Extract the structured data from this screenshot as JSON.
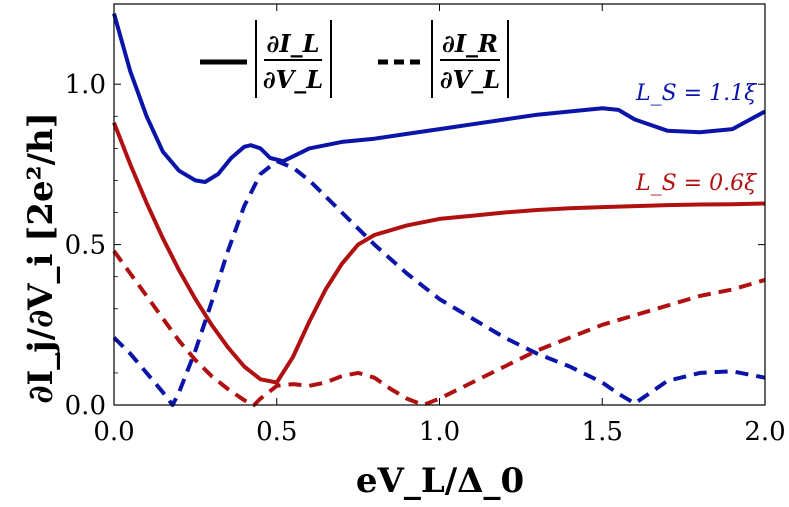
{
  "chart_data": {
    "type": "line",
    "xlabel": "eV_L/Δ_0",
    "ylabel": "∂I_j/∂V_i [2e²/h]",
    "xlim": [
      0,
      2
    ],
    "ylim": [
      0,
      1.25
    ],
    "xticks": [
      "0.0",
      "0.5",
      "1.0",
      "1.5",
      "2.0"
    ],
    "yticks": [
      "0.0",
      "0.5",
      "1.0"
    ],
    "legend": {
      "placement": "top-left",
      "solid": {
        "num": "∂I_L",
        "den": "∂V_L"
      },
      "dashed": {
        "num": "∂I_R",
        "den": "∂V_L"
      }
    },
    "series": [
      {
        "name": "L_S = 1.1ξ",
        "label": "L_S = 1.1ξ",
        "style": "solid",
        "color": "#0a14a8",
        "x": [
          0,
          0.05,
          0.1,
          0.15,
          0.2,
          0.25,
          0.28,
          0.32,
          0.36,
          0.4,
          0.42,
          0.45,
          0.48,
          0.52,
          0.6,
          0.7,
          0.8,
          0.9,
          1.0,
          1.1,
          1.2,
          1.3,
          1.4,
          1.5,
          1.55,
          1.6,
          1.7,
          1.8,
          1.9,
          2.0
        ],
        "y": [
          1.22,
          1.04,
          0.9,
          0.79,
          0.73,
          0.7,
          0.695,
          0.72,
          0.77,
          0.805,
          0.81,
          0.8,
          0.77,
          0.76,
          0.8,
          0.82,
          0.83,
          0.845,
          0.86,
          0.875,
          0.89,
          0.905,
          0.915,
          0.925,
          0.92,
          0.89,
          0.855,
          0.85,
          0.86,
          0.915
        ]
      },
      {
        "name": "L_S = 0.6ξ",
        "label": "L_S = 0.6ξ",
        "style": "solid",
        "color": "#b01010",
        "x": [
          0,
          0.05,
          0.1,
          0.15,
          0.2,
          0.25,
          0.3,
          0.35,
          0.4,
          0.45,
          0.5,
          0.55,
          0.6,
          0.65,
          0.7,
          0.75,
          0.8,
          0.9,
          1.0,
          1.1,
          1.2,
          1.3,
          1.4,
          1.5,
          1.6,
          1.7,
          1.8,
          1.9,
          2.0
        ],
        "y": [
          0.88,
          0.75,
          0.63,
          0.52,
          0.42,
          0.33,
          0.25,
          0.18,
          0.12,
          0.08,
          0.07,
          0.15,
          0.26,
          0.36,
          0.44,
          0.5,
          0.53,
          0.56,
          0.58,
          0.59,
          0.6,
          0.608,
          0.613,
          0.617,
          0.62,
          0.623,
          0.625,
          0.626,
          0.628
        ]
      },
      {
        "name": "dashed L_S = 1.1ξ",
        "style": "dashed",
        "color": "#0a14a8",
        "x": [
          0,
          0.05,
          0.1,
          0.15,
          0.18,
          0.2,
          0.25,
          0.3,
          0.35,
          0.4,
          0.45,
          0.5,
          0.55,
          0.6,
          0.7,
          0.8,
          0.9,
          1.0,
          1.1,
          1.2,
          1.3,
          1.4,
          1.5,
          1.55,
          1.6,
          1.65,
          1.7,
          1.8,
          1.9,
          2.0
        ],
        "y": [
          0.21,
          0.16,
          0.1,
          0.04,
          0.0,
          0.04,
          0.17,
          0.32,
          0.48,
          0.62,
          0.72,
          0.76,
          0.74,
          0.7,
          0.6,
          0.5,
          0.41,
          0.33,
          0.27,
          0.21,
          0.16,
          0.12,
          0.07,
          0.035,
          0.005,
          0.04,
          0.075,
          0.1,
          0.105,
          0.085
        ]
      },
      {
        "name": "dashed L_S = 0.6ξ",
        "style": "dashed",
        "color": "#b01010",
        "x": [
          0,
          0.05,
          0.1,
          0.15,
          0.2,
          0.25,
          0.3,
          0.35,
          0.4,
          0.43,
          0.45,
          0.5,
          0.55,
          0.6,
          0.65,
          0.7,
          0.75,
          0.8,
          0.85,
          0.9,
          0.95,
          1.0,
          1.1,
          1.2,
          1.3,
          1.4,
          1.5,
          1.6,
          1.7,
          1.8,
          1.9,
          2.0
        ],
        "y": [
          0.48,
          0.41,
          0.34,
          0.27,
          0.2,
          0.14,
          0.09,
          0.05,
          0.015,
          0.0,
          0.02,
          0.06,
          0.065,
          0.06,
          0.07,
          0.09,
          0.1,
          0.085,
          0.05,
          0.02,
          0.0,
          0.02,
          0.07,
          0.12,
          0.17,
          0.21,
          0.25,
          0.28,
          0.31,
          0.34,
          0.36,
          0.39
        ]
      }
    ]
  }
}
